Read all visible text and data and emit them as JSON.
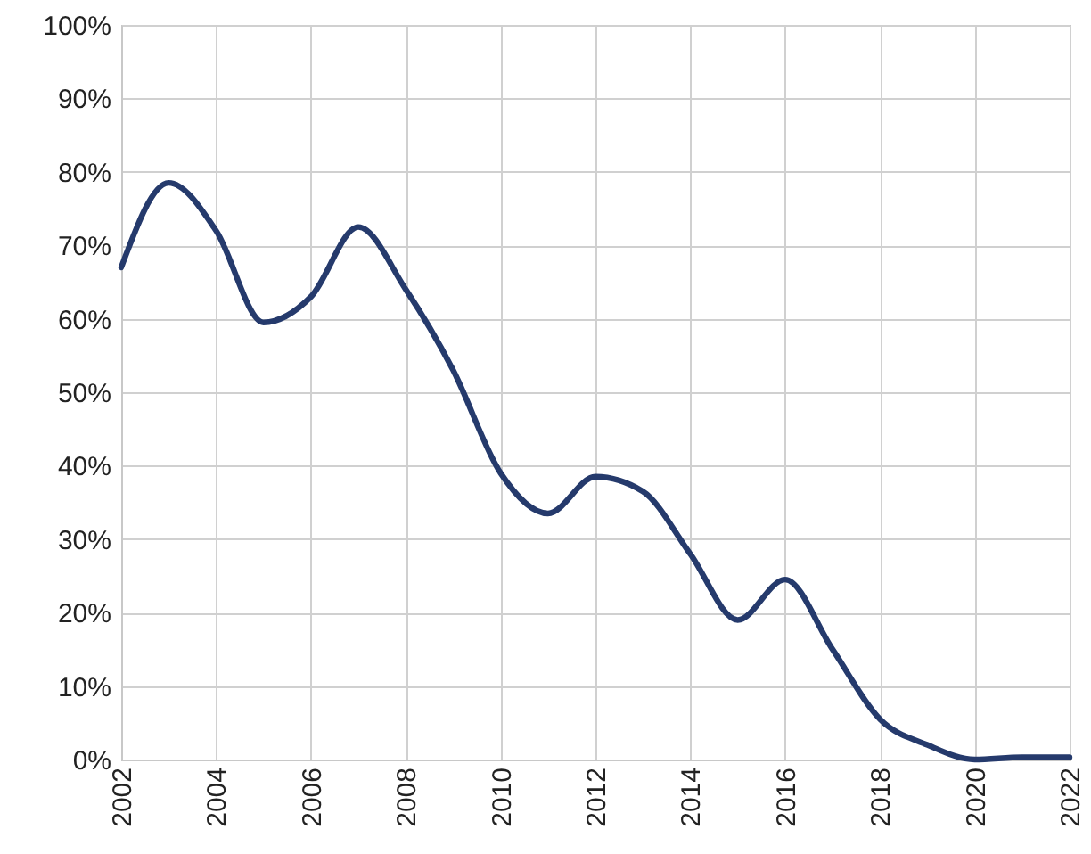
{
  "chart_data": {
    "type": "line",
    "x": [
      2002,
      2003,
      2004,
      2005,
      2006,
      2007,
      2008,
      2009,
      2010,
      2011,
      2012,
      2013,
      2014,
      2015,
      2016,
      2017,
      2018,
      2019,
      2020,
      2021,
      2022
    ],
    "series": [
      {
        "color": "#253a6c",
        "values": [
          67,
          78.5,
          72,
          59.5,
          63,
          72.5,
          64,
          53,
          39,
          33.5,
          38.5,
          36.5,
          28,
          19,
          24.5,
          15,
          5.5,
          2,
          0,
          0.3,
          0.3
        ]
      }
    ],
    "xlim": [
      2002,
      2022
    ],
    "xticks": [
      2002,
      2004,
      2006,
      2008,
      2010,
      2012,
      2014,
      2016,
      2018,
      2020,
      2022
    ],
    "ylim": [
      0,
      100
    ],
    "yticks": [
      {
        "value": 0,
        "label": "0%"
      },
      {
        "value": 10,
        "label": "10%"
      },
      {
        "value": 20,
        "label": "20%"
      },
      {
        "value": 30,
        "label": "30%"
      },
      {
        "value": 40,
        "label": "40%"
      },
      {
        "value": 50,
        "label": "50%"
      },
      {
        "value": 60,
        "label": "60%"
      },
      {
        "value": 70,
        "label": "70%"
      },
      {
        "value": 80,
        "label": "80%"
      },
      {
        "value": 90,
        "label": "90%"
      },
      {
        "value": 100,
        "label": "100%"
      }
    ],
    "grid": true,
    "marker": "none",
    "line_style": "solid"
  }
}
